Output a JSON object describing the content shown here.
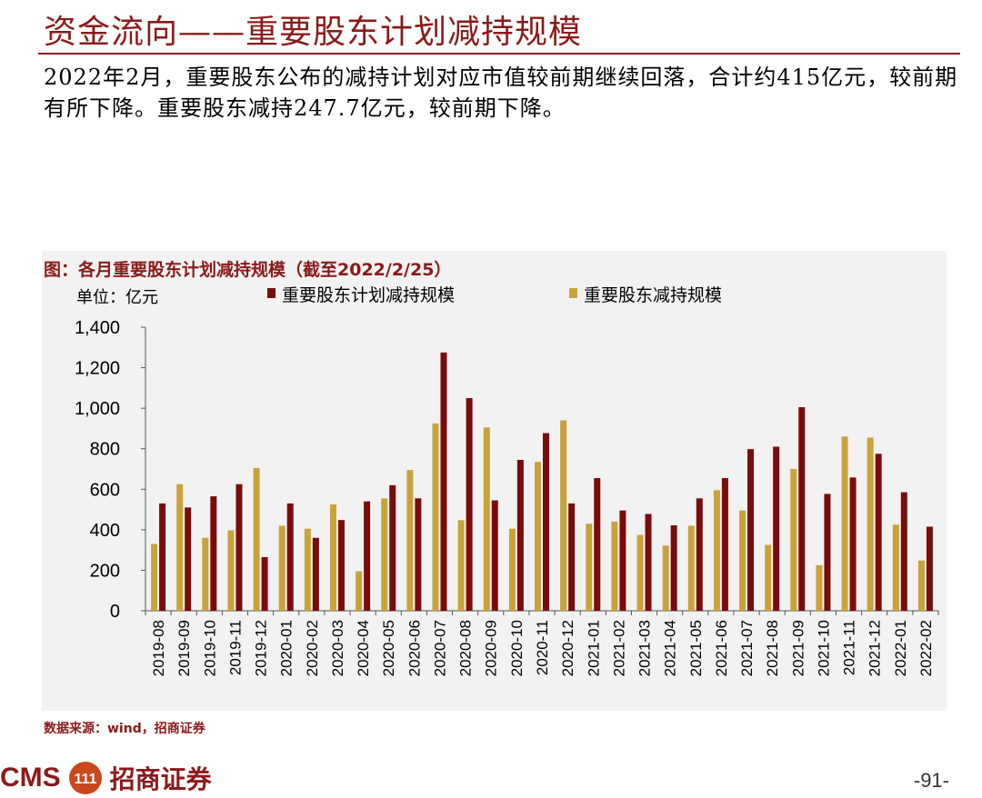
{
  "header": {
    "title": "资金流向——重要股东计划减持规模",
    "summary": "2022年2月，重要股东公布的减持计划对应市值较前期继续回落，合计约415亿元，较前期有所下降。重要股东减持247.7亿元，较前期下降。"
  },
  "chart_data": {
    "type": "bar",
    "title": "图：各月重要股东计划减持规模（截至2022/2/25）",
    "unit_label": "单位：亿元",
    "ylim": [
      0,
      1400
    ],
    "yticks": [
      "0",
      "200",
      "400",
      "600",
      "800",
      "1,000",
      "1,200",
      "1,400"
    ],
    "categories": [
      "2019-08",
      "2019-09",
      "2019-10",
      "2019-11",
      "2019-12",
      "2020-01",
      "2020-02",
      "2020-03",
      "2020-04",
      "2020-05",
      "2020-06",
      "2020-07",
      "2020-08",
      "2020-09",
      "2020-10",
      "2020-11",
      "2020-12",
      "2021-01",
      "2021-02",
      "2021-03",
      "2021-04",
      "2021-05",
      "2021-06",
      "2021-07",
      "2021-08",
      "2021-09",
      "2021-10",
      "2021-11",
      "2021-12",
      "2022-01",
      "2022-02"
    ],
    "series": [
      {
        "name": "重要股东减持规模",
        "color": "#c9a23a",
        "values": [
          330,
          625,
          360,
          397,
          705,
          420,
          405,
          525,
          195,
          555,
          695,
          925,
          447,
          905,
          405,
          735,
          940,
          430,
          440,
          375,
          322,
          420,
          595,
          495,
          325,
          700,
          225,
          860,
          855,
          425,
          248
        ]
      },
      {
        "name": "重要股东计划减持规模",
        "color": "#7a0c0c",
        "values": [
          530,
          510,
          565,
          625,
          265,
          530,
          360,
          448,
          540,
          620,
          555,
          1275,
          1050,
          545,
          745,
          877,
          530,
          655,
          495,
          478,
          422,
          555,
          655,
          798,
          810,
          1005,
          577,
          658,
          775,
          585,
          415
        ]
      }
    ],
    "legend_order": [
      1,
      0
    ],
    "grid": false
  },
  "footer": {
    "source": "数据来源：wind，招商证券",
    "logo_text": "CMS",
    "logo_badge": "111",
    "logo_cn": "招商证券",
    "page_number": "-91-"
  }
}
